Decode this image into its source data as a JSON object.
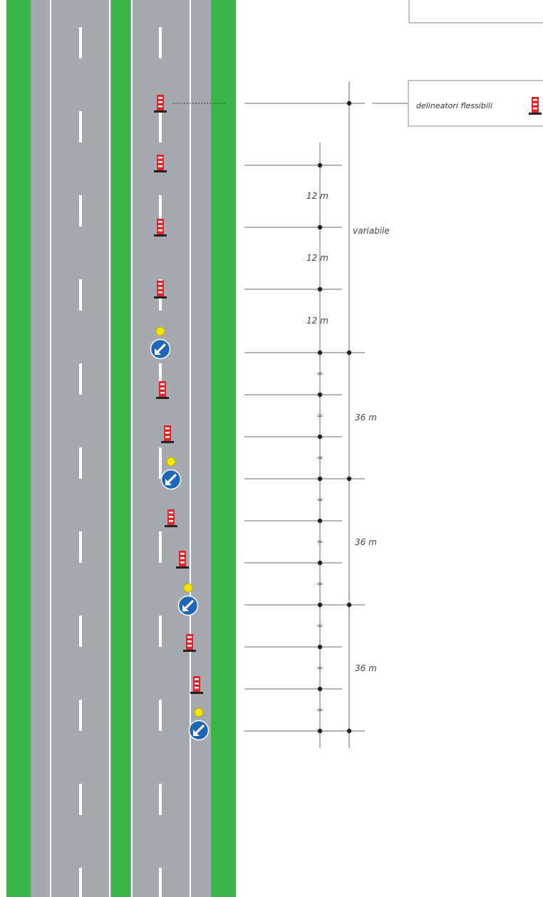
{
  "legend": {
    "label": "delineatori flessibili",
    "icon": "flexible-delineator-icon"
  },
  "dimensions": {
    "spacing_12m": "12 m",
    "variable": "variabile",
    "spacing_36m": "36 m",
    "equal_sign": "="
  },
  "colors": {
    "verge": "#39b54a",
    "asphalt": "#a6a9b0",
    "lane_marking": "#ffffff",
    "delineator_red": "#e0262b",
    "sign_blue": "#1f67b4",
    "lamp_yellow": "#f5e400",
    "dimension_line": "#555555"
  }
}
